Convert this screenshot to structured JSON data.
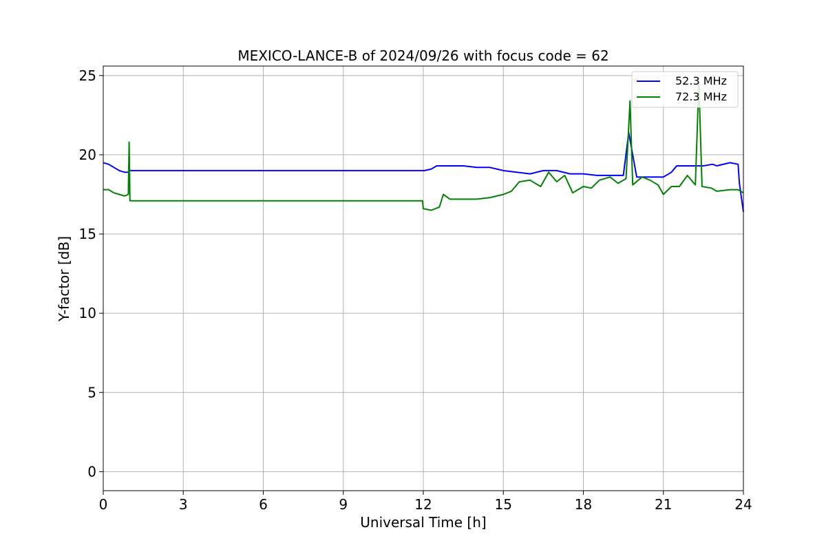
{
  "chart_data": {
    "type": "line",
    "title": "MEXICO-LANCE-B of 2024/09/26 with focus code = 62",
    "xlabel": "Universal Time [h]",
    "ylabel": "Y-factor [dB]",
    "xlim": [
      0,
      24
    ],
    "ylim": [
      -1.2,
      25.6
    ],
    "xticks": [
      "0",
      "3",
      "6",
      "9",
      "12",
      "15",
      "18",
      "21",
      "24"
    ],
    "yticks": [
      "0",
      "5",
      "10",
      "15",
      "20",
      "25"
    ],
    "grid": true,
    "legend_position": "upper right",
    "series": [
      {
        "name": "52.3 MHz",
        "color": "#0000ff",
        "x": [
          0,
          0.2,
          0.4,
          0.6,
          0.8,
          0.95,
          1.0,
          11.97,
          12.05,
          12.3,
          12.5,
          13.0,
          13.5,
          14.0,
          14.5,
          15.0,
          15.5,
          16.0,
          16.5,
          17.0,
          17.5,
          18.0,
          18.5,
          19.0,
          19.5,
          19.7,
          20.0,
          20.5,
          21.0,
          21.3,
          21.5,
          22.0,
          22.5,
          22.85,
          23.0,
          23.5,
          23.8,
          23.85,
          24.0
        ],
        "y": [
          19.5,
          19.4,
          19.2,
          19.0,
          18.9,
          18.9,
          19.0,
          19.0,
          19.0,
          19.1,
          19.3,
          19.3,
          19.3,
          19.2,
          19.2,
          19.0,
          18.9,
          18.8,
          19.0,
          19.0,
          18.8,
          18.8,
          18.7,
          18.7,
          18.7,
          21.4,
          18.6,
          18.6,
          18.6,
          18.9,
          19.3,
          19.3,
          19.3,
          19.4,
          19.3,
          19.5,
          19.4,
          18.2,
          16.4
        ]
      },
      {
        "name": "72.3 MHz",
        "color": "#008000",
        "x": [
          0,
          0.2,
          0.4,
          0.6,
          0.8,
          0.94,
          0.97,
          1.0,
          11.97,
          12.0,
          12.3,
          12.6,
          12.75,
          13.0,
          13.5,
          14.0,
          14.5,
          15.0,
          15.3,
          15.6,
          16.0,
          16.4,
          16.7,
          17.0,
          17.3,
          17.6,
          18.0,
          18.3,
          18.6,
          19.0,
          19.3,
          19.6,
          19.75,
          19.85,
          20.2,
          20.5,
          20.8,
          21.0,
          21.3,
          21.6,
          21.9,
          22.2,
          22.33,
          22.45,
          22.8,
          23.0,
          23.5,
          23.8,
          24.0
        ],
        "y": [
          17.8,
          17.8,
          17.6,
          17.5,
          17.4,
          17.5,
          20.8,
          17.1,
          17.1,
          16.6,
          16.5,
          16.7,
          17.5,
          17.2,
          17.2,
          17.2,
          17.3,
          17.5,
          17.7,
          18.3,
          18.4,
          18.0,
          18.9,
          18.3,
          18.7,
          17.6,
          18.0,
          17.9,
          18.4,
          18.6,
          18.2,
          18.5,
          23.4,
          18.1,
          18.6,
          18.4,
          18.1,
          17.5,
          18.0,
          18.0,
          18.7,
          18.1,
          24.6,
          18.0,
          17.9,
          17.7,
          17.8,
          17.8,
          17.6
        ]
      }
    ]
  }
}
